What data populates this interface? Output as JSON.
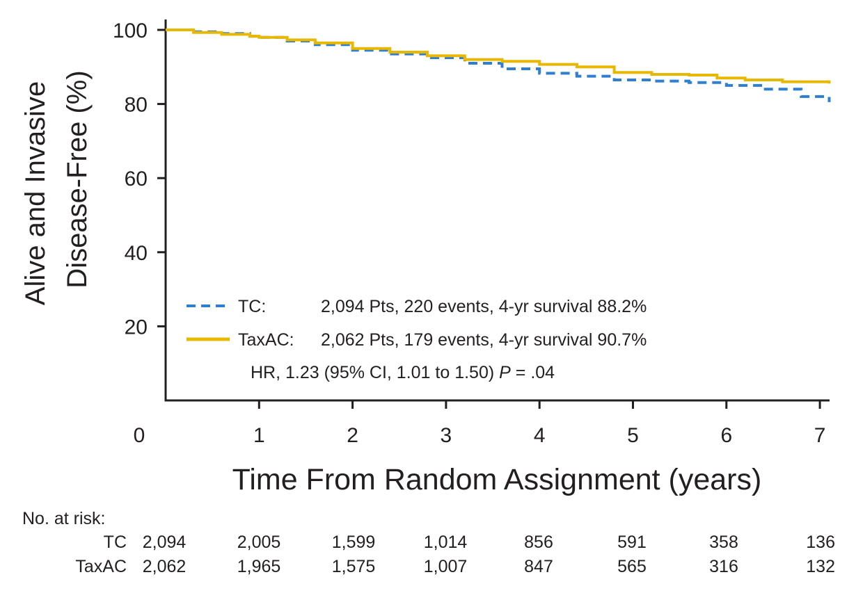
{
  "chart_data": {
    "type": "line",
    "title": "",
    "xlabel": "Time From Random Assignment (years)",
    "ylabel_lines": [
      "Alive and Invasive",
      "Disease-Free (%)"
    ],
    "xlim": [
      0,
      7.1
    ],
    "ylim": [
      0,
      100
    ],
    "x_ticks": [
      0,
      1,
      2,
      3,
      4,
      5,
      6,
      7
    ],
    "x_tick_labels": [
      "0",
      "1",
      "2",
      "3",
      "4",
      "5",
      "6",
      "7"
    ],
    "y_ticks": [
      20,
      40,
      60,
      80,
      100
    ],
    "y_tick_labels": [
      "20",
      "40",
      "60",
      "80",
      "100"
    ],
    "grid": false,
    "legend_position": "lower-left",
    "series": [
      {
        "name": "TC",
        "color": "#2f7fd0",
        "dash": "dashed",
        "legend_label": "TC:",
        "legend_detail": "2,094 Pts, 220 events, 4-yr survival 88.2%",
        "x": [
          0,
          0.3,
          0.6,
          0.9,
          1.0,
          1.3,
          1.6,
          2.0,
          2.4,
          2.8,
          3.2,
          3.6,
          4.0,
          4.4,
          4.8,
          5.2,
          5.6,
          6.0,
          6.4,
          6.8,
          7.1
        ],
        "y": [
          100,
          99.5,
          99,
          98.3,
          98,
          97,
          96,
          94.5,
          93.5,
          92.5,
          91,
          89.5,
          88.3,
          87.5,
          86.5,
          86.2,
          85.8,
          85,
          84,
          82,
          80.5
        ]
      },
      {
        "name": "TaxAC",
        "color": "#e8b800",
        "dash": "solid",
        "legend_label": "TaxAC:",
        "legend_detail": "2,062 Pts, 179 events, 4-yr survival 90.7%",
        "x": [
          0,
          0.3,
          0.6,
          0.9,
          1.0,
          1.3,
          1.6,
          2.0,
          2.4,
          2.8,
          3.2,
          3.6,
          4.0,
          4.4,
          4.8,
          5.2,
          5.6,
          5.9,
          6.2,
          6.6,
          7.1
        ],
        "y": [
          100,
          99.3,
          98.8,
          98.3,
          98,
          97.3,
          96.5,
          95,
          94,
          93,
          92,
          91.5,
          90.7,
          90,
          88.5,
          88,
          87.8,
          87,
          86.5,
          86,
          85.5
        ]
      }
    ],
    "annotation": {
      "hr_text": "HR, 1.23 (95% CI, 1.01 to 1.50) ",
      "p_label": "P",
      "p_value": " = .04"
    },
    "risk_table": {
      "header": "No. at risk:",
      "rows": [
        {
          "label": "TC",
          "values": [
            "2,094",
            "2,005",
            "1,599",
            "1,014",
            "856",
            "591",
            "358",
            "136"
          ]
        },
        {
          "label": "TaxAC",
          "values": [
            "2,062",
            "1,965",
            "1,575",
            "1,007",
            "847",
            "565",
            "316",
            "132"
          ]
        }
      ]
    }
  }
}
